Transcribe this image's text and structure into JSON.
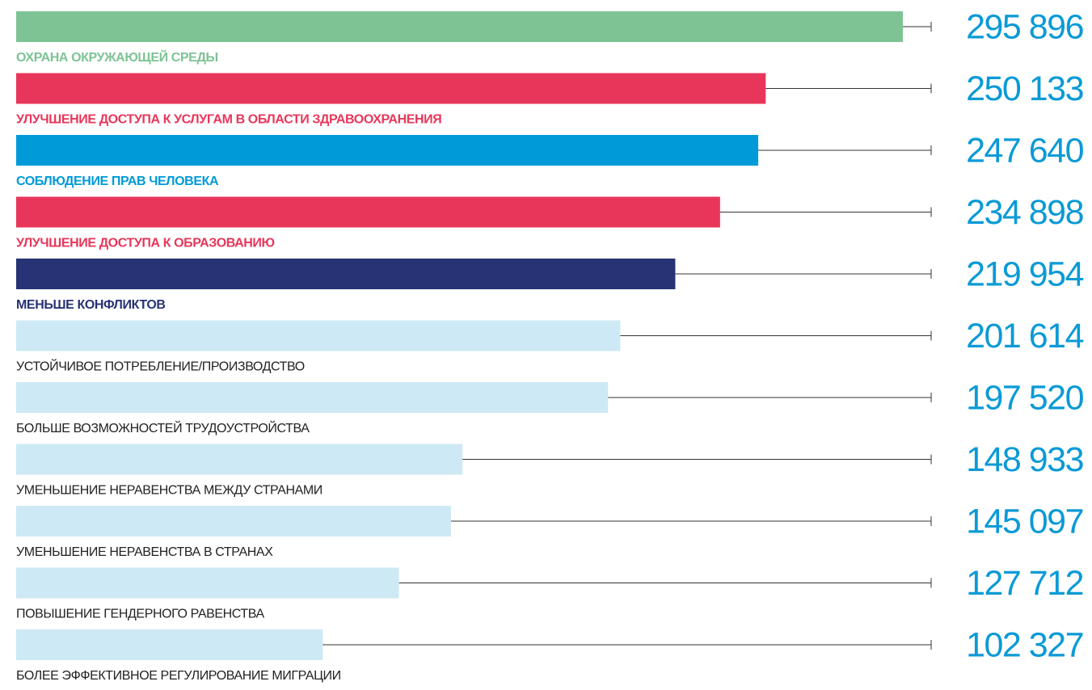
{
  "chart_data": {
    "type": "bar",
    "orientation": "horizontal",
    "categories": [
      "ОХРАНА ОКРУЖАЮЩЕЙ СРЕДЫ",
      "УЛУЧШЕНИЕ ДОСТУПА К УСЛУГАМ В ОБЛАСТИ ЗДРАВООХРАНЕНИЯ",
      "СОБЛЮДЕНИЕ ПРАВ ЧЕЛОВЕКА",
      "УЛУЧШЕНИЕ ДОСТУПА К ОБРАЗОВАНИЮ",
      "МЕНЬШЕ КОНФЛИКТОВ",
      "УСТОЙЧИВОЕ ПОТРЕБЛЕНИЕ/ПРОИЗВОДСТВО",
      "БОЛЬШЕ ВОЗМОЖНОСТЕЙ ТРУДОУСТРОЙСТВА",
      "УМЕНЬШЕНИЕ НЕРАВЕНСТВА МЕЖДУ СТРАНАМИ",
      "УМЕНЬШЕНИЕ НЕРАВЕНСТВА В СТРАНАХ",
      "ПОВЫШЕНИЕ ГЕНДЕРНОГО РАВЕНСТВА",
      "БОЛЕЕ ЭФФЕКТИВНОЕ РЕГУЛИРОВАНИЕ МИГРАЦИИ"
    ],
    "values": [
      295896,
      250133,
      247640,
      234898,
      219954,
      201614,
      197520,
      148933,
      145097,
      127712,
      102327
    ],
    "value_labels": [
      "295 896",
      "250 133",
      "247 640",
      "234 898",
      "219 954",
      "201 614",
      "197 520",
      "148 933",
      "145 097",
      "127 712",
      "102 327"
    ],
    "colors": [
      "#7dc394",
      "#e8365a",
      "#009ad8",
      "#e8365a",
      "#283375",
      "#cde9f5",
      "#cde9f5",
      "#cde9f5",
      "#cde9f5",
      "#cde9f5",
      "#cde9f5"
    ],
    "label_colors": [
      "#7dc394",
      "#e8365a",
      "#009ad8",
      "#e8365a",
      "#283375",
      "#222222",
      "#222222",
      "#222222",
      "#222222",
      "#222222",
      "#222222"
    ],
    "label_bold": [
      true,
      true,
      true,
      true,
      true,
      false,
      false,
      false,
      false,
      false,
      false
    ]
  }
}
